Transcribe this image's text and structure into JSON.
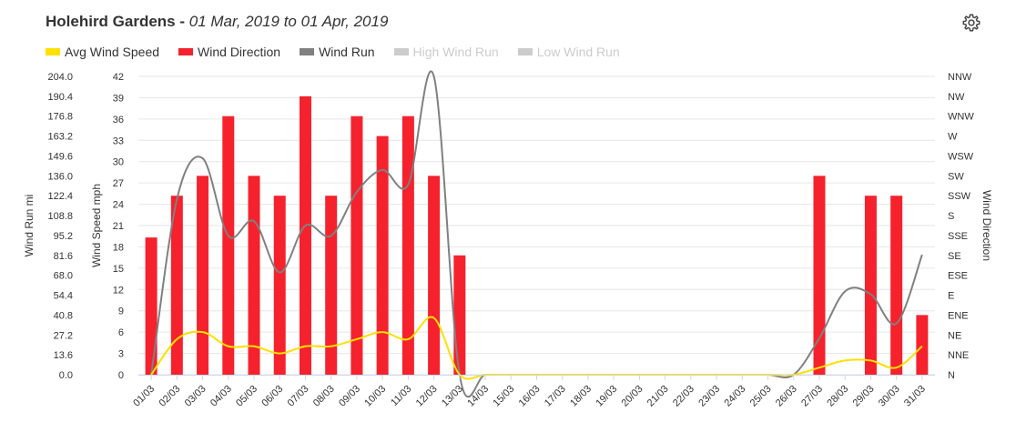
{
  "header": {
    "title": "Holehird Gardens",
    "separator": " - ",
    "date_range": "01 Mar, 2019 to 01 Apr, 2019",
    "settings_icon": "gear-icon"
  },
  "legend": [
    {
      "label": "Avg Wind Speed",
      "color": "#ffe000",
      "enabled": true
    },
    {
      "label": "Wind Direction",
      "color": "#f5222d",
      "enabled": true
    },
    {
      "label": "Wind Run",
      "color": "#808080",
      "enabled": true
    },
    {
      "label": "High Wind Run",
      "color": "#cccccc",
      "enabled": false
    },
    {
      "label": "Low Wind Run",
      "color": "#cccccc",
      "enabled": false
    }
  ],
  "colors": {
    "speed": "#ffe000",
    "direction": "#f5222d",
    "run": "#808080",
    "grid": "#e6e6e6",
    "axis_text": "#333333"
  },
  "chart_data": {
    "type": "bar",
    "categories": [
      "01/03",
      "02/03",
      "03/03",
      "04/03",
      "05/03",
      "06/03",
      "07/03",
      "08/03",
      "09/03",
      "10/03",
      "11/03",
      "12/03",
      "13/03",
      "14/03",
      "15/03",
      "16/03",
      "17/03",
      "18/03",
      "19/03",
      "20/03",
      "21/03",
      "22/03",
      "23/03",
      "24/03",
      "25/03",
      "26/03",
      "27/03",
      "28/03",
      "29/03",
      "30/03",
      "31/03"
    ],
    "axes": {
      "wind_run": {
        "label": "Wind Run mi",
        "ticks": [
          "0.0",
          "13.6",
          "27.2",
          "40.8",
          "54.4",
          "68.0",
          "81.6",
          "95.2",
          "108.8",
          "122.4",
          "136.0",
          "149.6",
          "163.2",
          "176.8",
          "190.4",
          "204.0"
        ],
        "range": [
          0,
          204
        ]
      },
      "wind_speed": {
        "label": "Wind Speed mph",
        "ticks": [
          "0",
          "3",
          "6",
          "9",
          "12",
          "15",
          "18",
          "21",
          "24",
          "27",
          "30",
          "33",
          "36",
          "39",
          "42"
        ],
        "range": [
          0,
          42
        ]
      },
      "wind_direction": {
        "label": "Wind Direction",
        "ticks": [
          "N",
          "NNE",
          "NE",
          "ENE",
          "E",
          "ESE",
          "SE",
          "SSE",
          "S",
          "SSW",
          "SW",
          "WSW",
          "W",
          "WNW",
          "NW",
          "NNW"
        ],
        "range": [
          0,
          15
        ]
      }
    },
    "grid": true,
    "legend_position": "top-left",
    "series": [
      {
        "name": "Wind Direction",
        "type": "bar",
        "axis": "wind_direction",
        "values": [
          6.9,
          9,
          10,
          13,
          10,
          9,
          14,
          9,
          13,
          12,
          13,
          10,
          6,
          null,
          null,
          null,
          null,
          null,
          null,
          null,
          null,
          null,
          null,
          null,
          null,
          null,
          10,
          null,
          9,
          9,
          3
        ]
      },
      {
        "name": "Avg Wind Speed",
        "type": "line",
        "axis": "wind_speed",
        "values": [
          0,
          5,
          6,
          4,
          4,
          3,
          4,
          4,
          5,
          6,
          5,
          8,
          0,
          0,
          0,
          0,
          0,
          0,
          0,
          0,
          0,
          0,
          0,
          0,
          0,
          0,
          1,
          2,
          2,
          1,
          4
        ]
      },
      {
        "name": "Wind Run",
        "type": "line",
        "axis": "wind_run",
        "values": [
          0,
          120,
          148,
          95,
          105,
          70,
          102,
          95,
          125,
          140,
          130,
          204,
          0,
          0,
          0,
          0,
          0,
          0,
          0,
          0,
          0,
          0,
          0,
          0,
          0,
          0,
          25,
          57,
          55,
          35,
          82
        ]
      }
    ]
  }
}
